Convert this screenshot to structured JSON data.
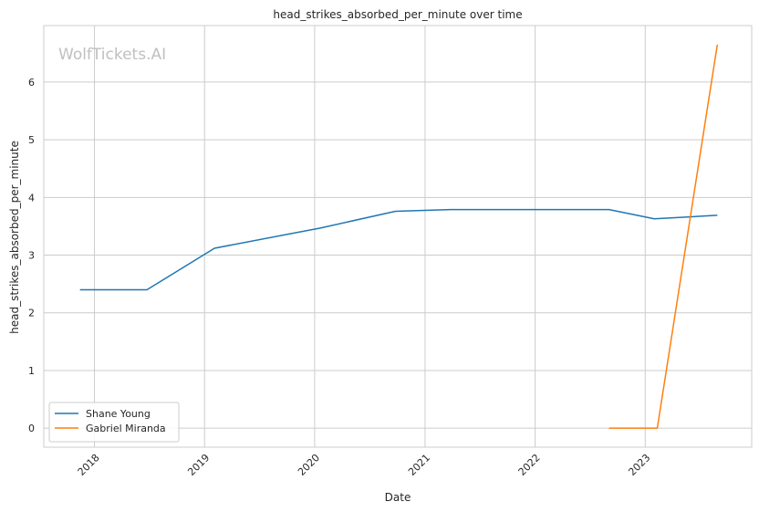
{
  "chart_data": {
    "type": "line",
    "title": "head_strikes_absorbed_per_minute over time",
    "xlabel": "Date",
    "ylabel": "head_strikes_absorbed_per_minute",
    "watermark": "WolfTickets.AI",
    "x_tick_labels": [
      "2018",
      "2019",
      "2020",
      "2021",
      "2022",
      "2023"
    ],
    "y_tick_labels": [
      "0",
      "1",
      "2",
      "3",
      "4",
      "5",
      "6"
    ],
    "xlim": [
      "2017-07-17",
      "2023-12-20"
    ],
    "ylim": [
      -0.33,
      6.98
    ],
    "grid": true,
    "legend_position": "lower-left",
    "series": [
      {
        "name": "Shane Young",
        "color": "#1f77b4",
        "points": [
          {
            "x": "2017-11-14",
            "y": 2.4
          },
          {
            "x": "2018-06-24",
            "y": 2.4
          },
          {
            "x": "2019-02-03",
            "y": 3.12
          },
          {
            "x": "2020-01-20",
            "y": 3.47
          },
          {
            "x": "2020-09-25",
            "y": 3.76
          },
          {
            "x": "2021-03-26",
            "y": 3.79
          },
          {
            "x": "2022-09-03",
            "y": 3.79
          },
          {
            "x": "2023-01-31",
            "y": 3.63
          },
          {
            "x": "2023-08-28",
            "y": 3.69
          }
        ]
      },
      {
        "name": "Gabriel Miranda",
        "color": "#ff7f0e",
        "points": [
          {
            "x": "2022-09-03",
            "y": 0.0
          },
          {
            "x": "2023-02-10",
            "y": 0.0
          },
          {
            "x": "2023-08-28",
            "y": 6.65
          }
        ]
      }
    ]
  }
}
